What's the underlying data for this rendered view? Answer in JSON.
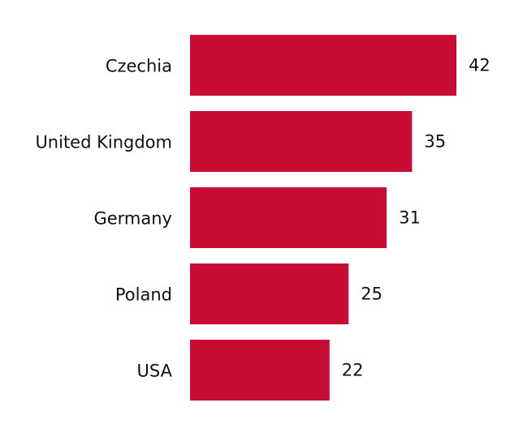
{
  "chart_data": {
    "type": "bar",
    "orientation": "horizontal",
    "categories": [
      "Czechia",
      "United Kingdom",
      "Germany",
      "Poland",
      "USA"
    ],
    "values": [
      42,
      35,
      31,
      25,
      22
    ],
    "color": "#c90c33"
  }
}
